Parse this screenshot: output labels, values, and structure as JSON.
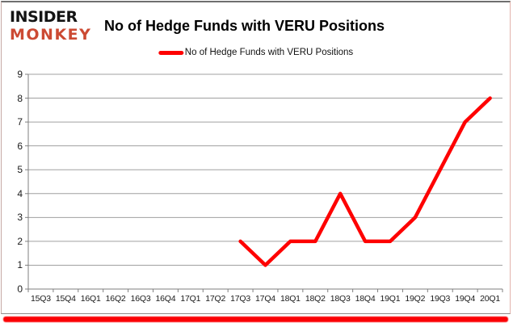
{
  "logo": {
    "line1": "INSIDER",
    "line2": "MONKEY"
  },
  "header": {
    "title": "No of Hedge Funds with VERU Positions"
  },
  "legend": {
    "label": "No of Hedge Funds with VERU Positions"
  },
  "chart_data": {
    "type": "line",
    "title": "No of Hedge Funds with VERU Positions",
    "xlabel": "",
    "ylabel": "",
    "categories": [
      "15Q3",
      "15Q4",
      "16Q1",
      "16Q2",
      "16Q3",
      "16Q4",
      "17Q1",
      "17Q2",
      "17Q3",
      "17Q4",
      "18Q1",
      "18Q2",
      "18Q3",
      "18Q4",
      "19Q1",
      "19Q2",
      "19Q3",
      "19Q4",
      "20Q1"
    ],
    "series": [
      {
        "name": "No of Hedge Funds with VERU Positions",
        "color": "#fe0000",
        "values": [
          null,
          null,
          null,
          null,
          null,
          null,
          null,
          null,
          2,
          1,
          2,
          2,
          4,
          2,
          2,
          3,
          5,
          7,
          8
        ]
      }
    ],
    "ylim": [
      0,
      9
    ],
    "ytick_step": 1,
    "grid": "horizontal",
    "legend_position": "top-center"
  },
  "colors": {
    "line": "#fe0000",
    "accent_bar": "#fb0105",
    "logo_insider": "#141414",
    "logo_monkey": "#cc4a33",
    "gridline": "#a0a0a0",
    "axis": "#7f7f7f",
    "tick_label": "#1a1a1a"
  }
}
